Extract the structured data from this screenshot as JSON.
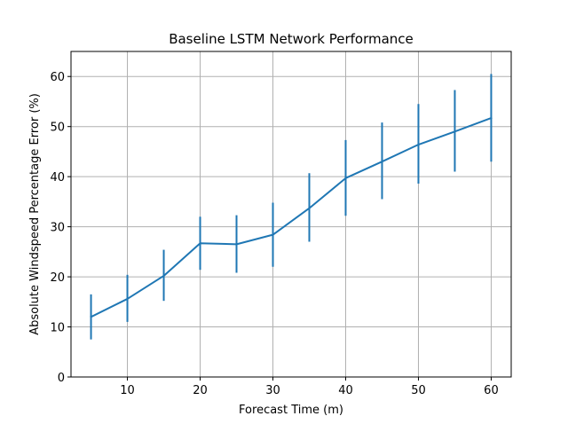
{
  "chart_data": {
    "type": "line",
    "title": "Baseline LSTM Network Performance",
    "xlabel": "Forecast Time (m)",
    "ylabel": "Absolute Windspeed Percentage Error (%)",
    "x": [
      5,
      10,
      15,
      20,
      25,
      30,
      35,
      40,
      45,
      50,
      55,
      60
    ],
    "series": [
      {
        "values": [
          12.0,
          15.6,
          20.2,
          26.7,
          26.5,
          28.4,
          33.7,
          39.7,
          43.0,
          46.4,
          49.0,
          51.7
        ],
        "error_low": [
          7.5,
          11.0,
          15.2,
          21.4,
          20.8,
          22.0,
          27.0,
          32.2,
          35.5,
          38.6,
          41.0,
          43.0
        ],
        "error_high": [
          16.5,
          20.4,
          25.4,
          32.0,
          32.3,
          34.8,
          40.7,
          47.3,
          50.8,
          54.5,
          57.3,
          60.5
        ]
      }
    ],
    "xlim": [
      2.25,
      62.75
    ],
    "ylim": [
      0,
      65
    ],
    "xticks": [
      "10",
      "20",
      "30",
      "40",
      "50",
      "60"
    ],
    "yticks": [
      "0",
      "10",
      "20",
      "30",
      "40",
      "50",
      "60"
    ],
    "grid": true,
    "color": "#1f77b4"
  }
}
